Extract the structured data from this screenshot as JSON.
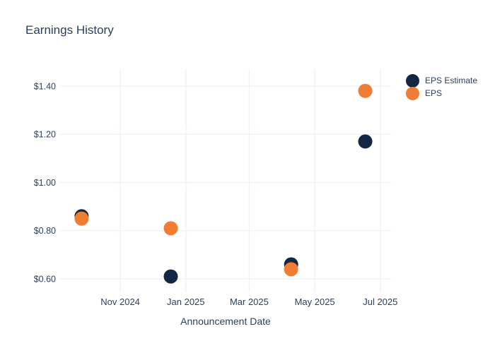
{
  "title": {
    "text": "Earnings History"
  },
  "colors": {
    "eps_estimate": "#132742",
    "eps": "#f07d33",
    "text": "#2a3f5f",
    "gridline": "#edf1f8",
    "background": "#ffffff"
  },
  "legend": {
    "items": [
      {
        "label": "EPS Estimate",
        "color": "#132742"
      },
      {
        "label": "EPS",
        "color": "#f07d33"
      }
    ]
  },
  "chart_data": {
    "type": "scatter",
    "title": "Earnings History",
    "xlabel": "Announcement Date",
    "ylabel": "",
    "x_dates_approx": [
      "2024-09-26",
      "2024-12-18",
      "2025-04-09",
      "2025-06-17"
    ],
    "series": [
      {
        "name": "EPS Estimate",
        "color": "#132742",
        "values": [
          0.86,
          0.61,
          0.66,
          1.17
        ]
      },
      {
        "name": "EPS",
        "color": "#f07d33",
        "values": [
          0.85,
          0.81,
          0.64,
          1.38
        ]
      }
    ],
    "xticks": {
      "labels": [
        "Nov 2024",
        "Jan 2025",
        "Mar 2025",
        "May 2025",
        "Jul 2025"
      ],
      "dates": [
        "2024-11-01",
        "2025-01-01",
        "2025-03-01",
        "2025-05-01",
        "2025-07-01"
      ]
    },
    "yticks": {
      "labels": [
        "$0.60",
        "$0.80",
        "$1.00",
        "$1.20",
        "$1.40"
      ],
      "values": [
        0.6,
        0.8,
        1.0,
        1.2,
        1.4
      ]
    },
    "xlim": [
      "2024-09-06",
      "2025-07-11"
    ],
    "ylim": [
      0.562,
      1.47
    ],
    "grid": true,
    "legend_position": "outside-top-right",
    "marker_diameter_px": 20
  }
}
